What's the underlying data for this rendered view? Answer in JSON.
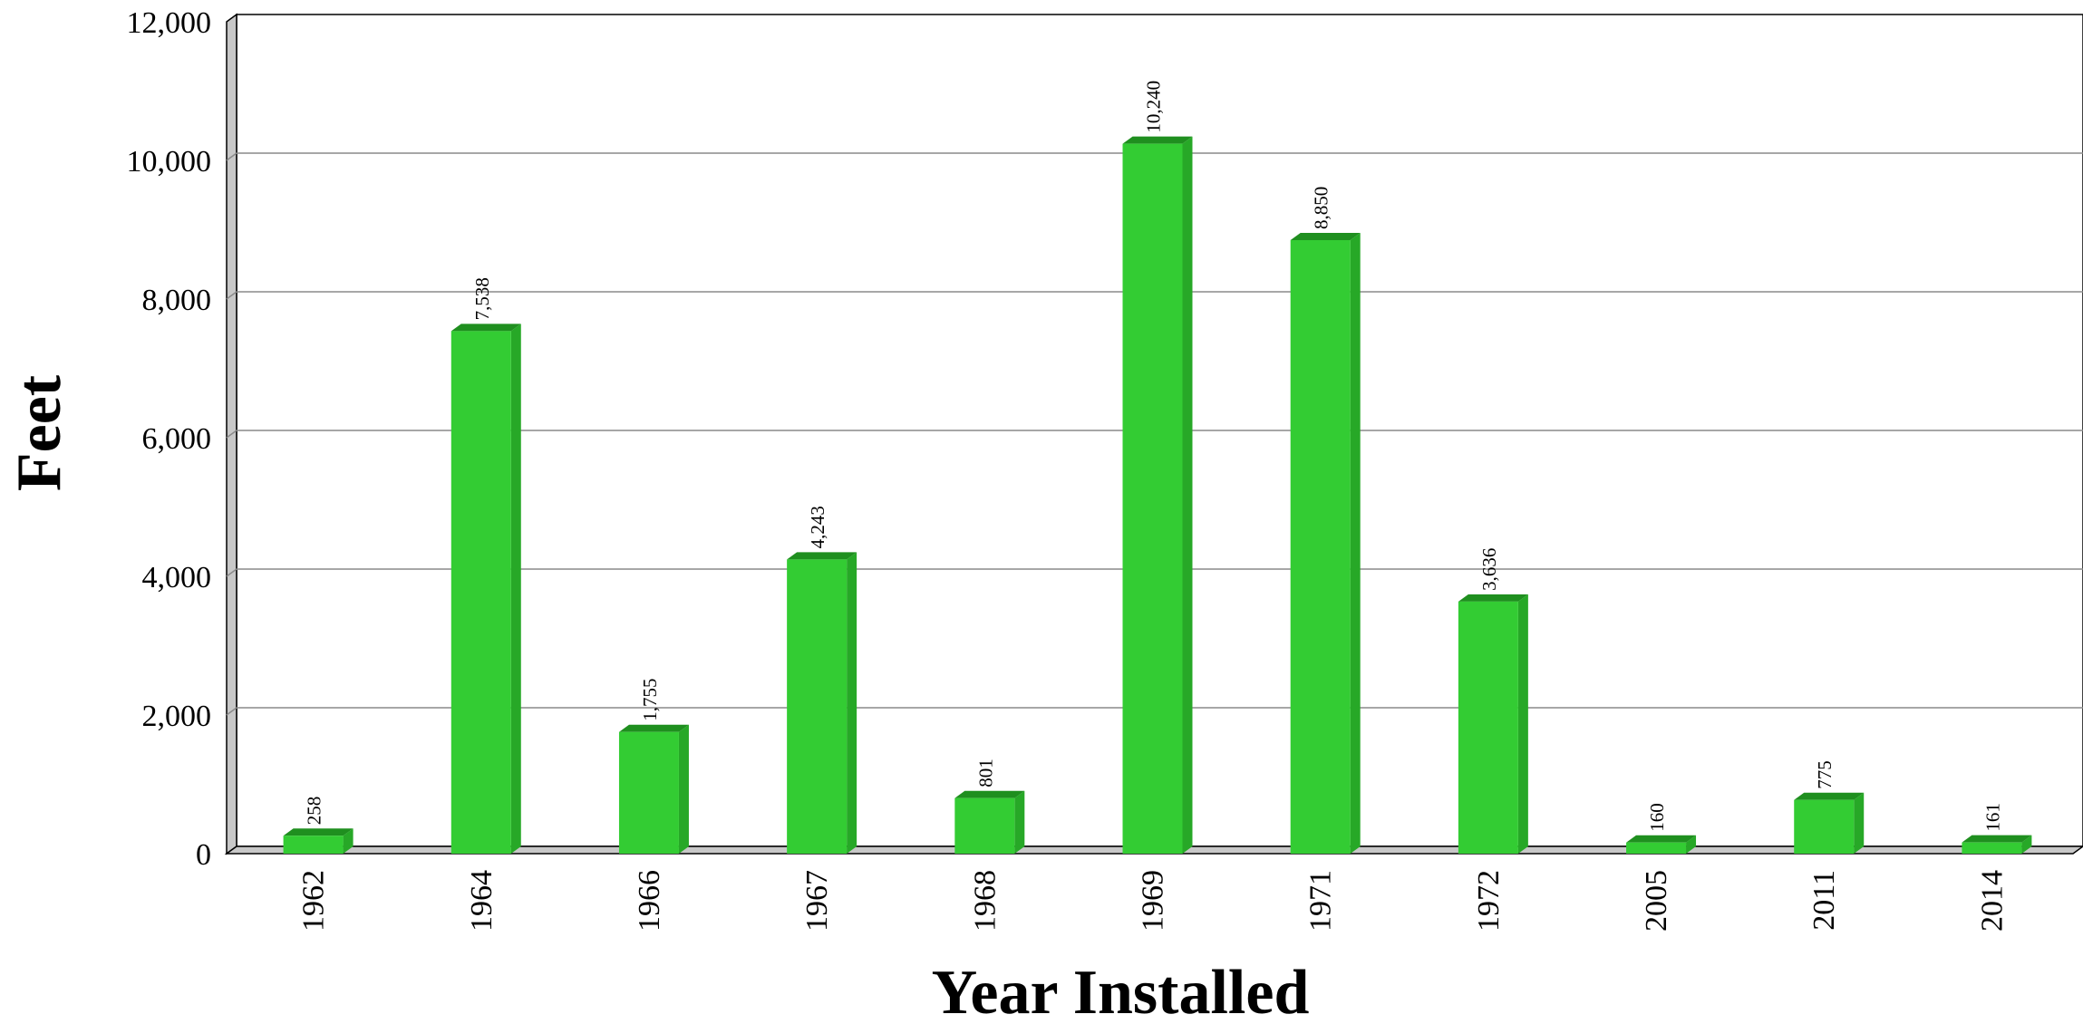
{
  "chart_data": {
    "type": "bar",
    "title": "",
    "xlabel": "Year Installed",
    "ylabel": "Feet",
    "categories": [
      "1962",
      "1964",
      "1966",
      "1967",
      "1968",
      "1969",
      "1971",
      "1972",
      "2005",
      "2011",
      "2014"
    ],
    "values": [
      258,
      7538,
      1755,
      4243,
      801,
      10240,
      8850,
      3636,
      160,
      775,
      161
    ],
    "value_labels": [
      "258",
      "7,538",
      "1,755",
      "4,243",
      "801",
      "10,240",
      "8,850",
      "3,636",
      "160",
      "775",
      "161"
    ],
    "ylim": [
      0,
      12000
    ],
    "yticks": [
      0,
      2000,
      4000,
      6000,
      8000,
      10000,
      12000
    ],
    "ytick_labels": [
      "0",
      "2,000",
      "4,000",
      "6,000",
      "8,000",
      "10,000",
      "12,000"
    ],
    "grid": true,
    "legend": "none",
    "bar_color": "#33cc33",
    "bar_side_color": "#27a827",
    "bar_top_color": "#1f8f1f"
  }
}
